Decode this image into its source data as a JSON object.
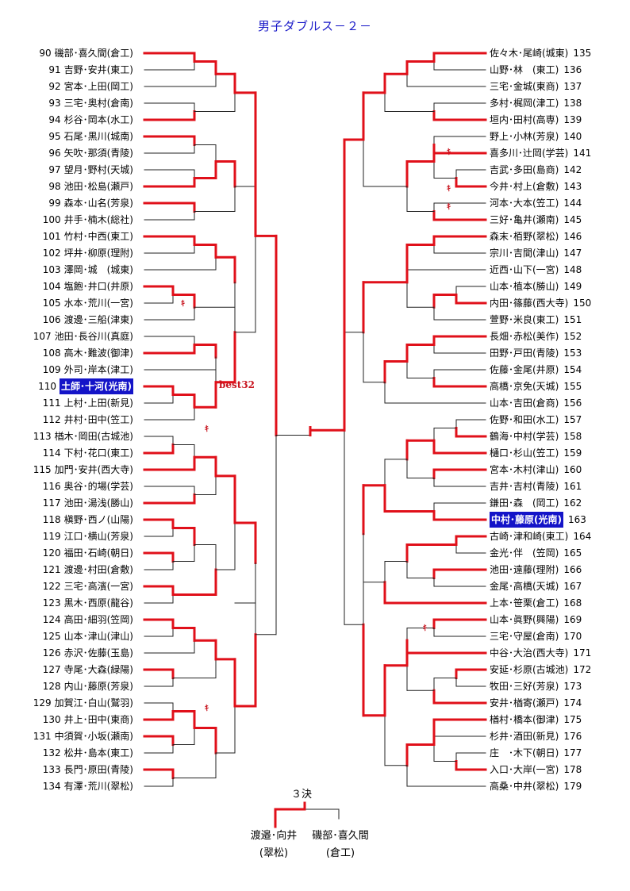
{
  "title": "男子ダブルス－２－",
  "best_label": "best32",
  "koke_mark": "ｷ",
  "left_entries": [
    {
      "num": "90",
      "name": "磯部･喜久間(倉工)"
    },
    {
      "num": "91",
      "name": "吉野･安井(東工)"
    },
    {
      "num": "92",
      "name": "宮本･上田(岡工)"
    },
    {
      "num": "93",
      "name": "三宅･奥村(倉南)"
    },
    {
      "num": "94",
      "name": "杉谷･岡本(水工)"
    },
    {
      "num": "95",
      "name": "石尾･黒川(城南)"
    },
    {
      "num": "96",
      "name": "矢吹･那須(青陵)"
    },
    {
      "num": "97",
      "name": "望月･野村(天城)"
    },
    {
      "num": "98",
      "name": "池田･松島(瀬戸)"
    },
    {
      "num": "99",
      "name": "森本･山名(芳泉)"
    },
    {
      "num": "100",
      "name": "井手･楠木(総社)"
    },
    {
      "num": "101",
      "name": "竹村･中西(東工)"
    },
    {
      "num": "102",
      "name": "坪井･柳原(理附)"
    },
    {
      "num": "103",
      "name": "澤岡･城　(城東)"
    },
    {
      "num": "104",
      "name": "塩飽･井口(井原)"
    },
    {
      "num": "105",
      "name": "水本･荒川(一宮)"
    },
    {
      "num": "106",
      "name": "渡邊･三船(津東)"
    },
    {
      "num": "107",
      "name": "池田･長谷川(真庭)"
    },
    {
      "num": "108",
      "name": "高木･難波(御津)"
    },
    {
      "num": "109",
      "name": "外司･岸本(津工)"
    },
    {
      "num": "110",
      "name": "土師･十河(光南)",
      "hl": true
    },
    {
      "num": "111",
      "name": "上村･上田(新見)"
    },
    {
      "num": "112",
      "name": "井村･田中(笠工)"
    },
    {
      "num": "113",
      "name": "楢木･岡田(古城池)"
    },
    {
      "num": "114",
      "name": "下村･花口(東工)"
    },
    {
      "num": "115",
      "name": "加門･安井(西大寺)"
    },
    {
      "num": "116",
      "name": "奥谷･的場(学芸)"
    },
    {
      "num": "117",
      "name": "池田･湯浅(勝山)"
    },
    {
      "num": "118",
      "name": "槇野･西ノ(山陽)"
    },
    {
      "num": "119",
      "name": "江口･横山(芳泉)"
    },
    {
      "num": "120",
      "name": "福田･石崎(朝日)"
    },
    {
      "num": "121",
      "name": "渡邊･村田(倉敷)"
    },
    {
      "num": "122",
      "name": "三宅･高濱(一宮)"
    },
    {
      "num": "123",
      "name": "黒木･西原(龍谷)"
    },
    {
      "num": "124",
      "name": "高田･細羽(笠岡)"
    },
    {
      "num": "125",
      "name": "山本･津山(津山)"
    },
    {
      "num": "126",
      "name": "赤沢･佐藤(玉島)"
    },
    {
      "num": "127",
      "name": "寺尾･大森(緑陽)"
    },
    {
      "num": "128",
      "name": "内山･藤原(芳泉)"
    },
    {
      "num": "129",
      "name": "加賀江･白山(鷲羽)"
    },
    {
      "num": "130",
      "name": "井上･田中(東商)"
    },
    {
      "num": "131",
      "name": "中須賀･小坂(瀬南)"
    },
    {
      "num": "132",
      "name": "松井･島本(東工)"
    },
    {
      "num": "133",
      "name": "長門･原田(青陵)"
    },
    {
      "num": "134",
      "name": "有澤･荒川(翠松)"
    }
  ],
  "right_entries": [
    {
      "num": "135",
      "name": "佐々木･尾崎(城東)"
    },
    {
      "num": "136",
      "name": "山野･林　(東工)"
    },
    {
      "num": "137",
      "name": "三宅･金城(東商)"
    },
    {
      "num": "138",
      "name": "多村･梶岡(津工)"
    },
    {
      "num": "139",
      "name": "垣内･田村(高専)"
    },
    {
      "num": "140",
      "name": "野上･小林(芳泉)"
    },
    {
      "num": "141",
      "name": "喜多川･辻岡(学芸)"
    },
    {
      "num": "142",
      "name": "吉武･多田(島商)"
    },
    {
      "num": "143",
      "name": "今井･村上(倉敷)"
    },
    {
      "num": "144",
      "name": "河本･大本(笠工)"
    },
    {
      "num": "145",
      "name": "三好･亀井(瀬南)"
    },
    {
      "num": "146",
      "name": "森末･栢野(翠松)"
    },
    {
      "num": "147",
      "name": "宗川･吉間(津山)"
    },
    {
      "num": "148",
      "name": "近西･山下(一宮)"
    },
    {
      "num": "149",
      "name": "山本･植本(勝山)"
    },
    {
      "num": "150",
      "name": "内田･篠藤(西大寺)"
    },
    {
      "num": "151",
      "name": "萱野･米良(東工)"
    },
    {
      "num": "152",
      "name": "長畑･赤松(美作)"
    },
    {
      "num": "153",
      "name": "田野･戸田(青陵)"
    },
    {
      "num": "154",
      "name": "佐藤･金尾(井原)"
    },
    {
      "num": "155",
      "name": "高橋･京免(天城)"
    },
    {
      "num": "156",
      "name": "山本･吉田(倉商)"
    },
    {
      "num": "157",
      "name": "佐野･和田(水工)"
    },
    {
      "num": "158",
      "name": "鶴海･中村(学芸)"
    },
    {
      "num": "159",
      "name": "樋口･杉山(笠工)"
    },
    {
      "num": "160",
      "name": "宮本･木村(津山)"
    },
    {
      "num": "161",
      "name": "吉井･吉村(青陵)"
    },
    {
      "num": "162",
      "name": "鎌田･森　(岡工)"
    },
    {
      "num": "163",
      "name": "中村･藤原(光南)",
      "hl": true
    },
    {
      "num": "164",
      "name": "古崎･津和崎(東工)"
    },
    {
      "num": "165",
      "name": "金光･伴　(笠岡)"
    },
    {
      "num": "166",
      "name": "池田･遠藤(理附)"
    },
    {
      "num": "167",
      "name": "金尾･高橋(天城)"
    },
    {
      "num": "168",
      "name": "上本･笹栗(倉工)"
    },
    {
      "num": "169",
      "name": "山本･眞野(興陽)"
    },
    {
      "num": "170",
      "name": "三宅･守屋(倉南)"
    },
    {
      "num": "171",
      "name": "中谷･大治(西大寺)"
    },
    {
      "num": "172",
      "name": "安延･杉原(古城池)"
    },
    {
      "num": "173",
      "name": "牧田･三好(芳泉)"
    },
    {
      "num": "174",
      "name": "安井･楢寄(瀬戸)"
    },
    {
      "num": "175",
      "name": "楢村･橋本(御津)"
    },
    {
      "num": "176",
      "name": "杉井･酒田(新見)"
    },
    {
      "num": "177",
      "name": "庄　･木下(朝日)"
    },
    {
      "num": "178",
      "name": "入口･大岸(一宮)"
    },
    {
      "num": "179",
      "name": "高桑･中井(翠松)"
    }
  ],
  "third_place": {
    "title": "３決",
    "winner_name": "渡邉･向井",
    "winner_school": "(翠松)",
    "runner_name": "磯部･喜久間",
    "runner_school": "(倉工)"
  }
}
